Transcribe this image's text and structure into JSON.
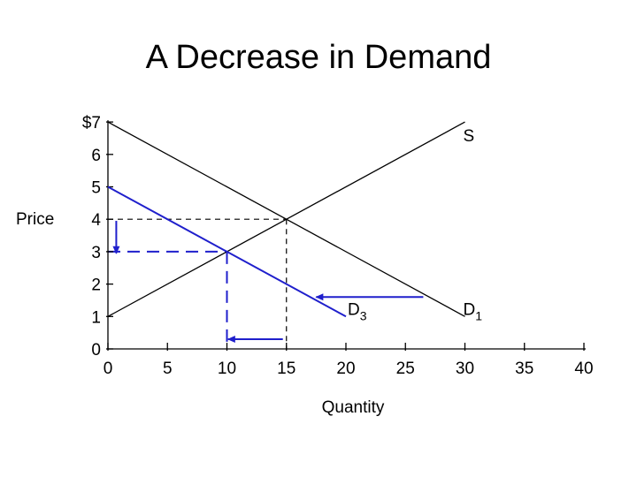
{
  "page": {
    "title": "A Decrease in Demand"
  },
  "chart_data": {
    "type": "line",
    "title": "A Decrease in Demand",
    "xlabel": "Quantity",
    "ylabel": "Price",
    "xlim": [
      0,
      40
    ],
    "ylim": [
      0,
      7
    ],
    "x_ticks": [
      {
        "value": 0,
        "label": "0"
      },
      {
        "value": 5,
        "label": "5"
      },
      {
        "value": 10,
        "label": "10"
      },
      {
        "value": 15,
        "label": "15"
      },
      {
        "value": 20,
        "label": "20"
      },
      {
        "value": 25,
        "label": "25"
      },
      {
        "value": 30,
        "label": "30"
      },
      {
        "value": 35,
        "label": "35"
      },
      {
        "value": 40,
        "label": "40"
      }
    ],
    "y_ticks": [
      {
        "value": 0,
        "label": "0"
      },
      {
        "value": 1,
        "label": "1"
      },
      {
        "value": 2,
        "label": "2"
      },
      {
        "value": 3,
        "label": "3"
      },
      {
        "value": 4,
        "label": "4"
      },
      {
        "value": 5,
        "label": "5"
      },
      {
        "value": 6,
        "label": "6"
      },
      {
        "value": 7,
        "label": "$7"
      }
    ],
    "series": [
      {
        "id": "supply",
        "name": "S",
        "color": "#000000",
        "points": [
          [
            0,
            1
          ],
          [
            30,
            7
          ]
        ]
      },
      {
        "id": "demand-1",
        "name": "D",
        "subscript": "1",
        "color": "#000000",
        "points": [
          [
            0,
            7
          ],
          [
            30,
            1
          ]
        ]
      },
      {
        "id": "demand-3",
        "name": "D",
        "subscript": "3",
        "color": "#1f1fcc",
        "points": [
          [
            0,
            5
          ],
          [
            20,
            1
          ]
        ]
      }
    ],
    "equilibria": [
      {
        "id": "original",
        "x": 15,
        "y": 4,
        "color": "#000000",
        "dash": "short"
      },
      {
        "id": "new",
        "x": 10,
        "y": 3,
        "color": "#1f1fcc",
        "dash": "long"
      }
    ],
    "arrows": [
      {
        "id": "demand-shift-arrow",
        "from": [
          26.5,
          1.6
        ],
        "to": [
          17.5,
          1.6
        ],
        "color": "#1f1fcc"
      },
      {
        "id": "quantity-arrow",
        "from": [
          14.7,
          0.3
        ],
        "to": [
          10.1,
          0.3
        ],
        "color": "#1f1fcc"
      },
      {
        "id": "price-arrow",
        "from": [
          0.7,
          3.95
        ],
        "to": [
          0.7,
          2.95
        ],
        "color": "#1f1fcc"
      }
    ]
  }
}
